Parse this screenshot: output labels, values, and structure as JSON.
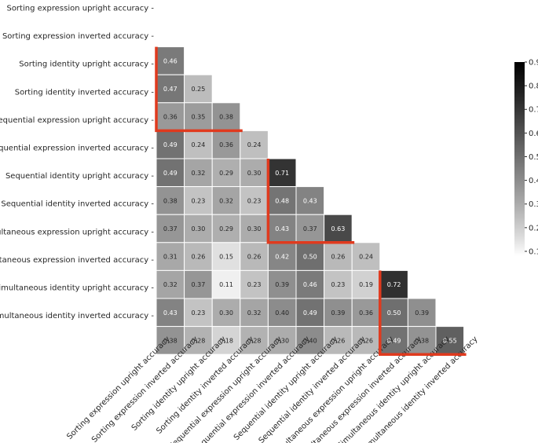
{
  "chart_data": {
    "type": "heatmap",
    "title": "",
    "xlabel": "",
    "ylabel": "",
    "labels": [
      "Sorting expression upright accuracy",
      "Sorting expression inverted accuracy",
      "Sorting identity upright accuracy",
      "Sorting identity inverted accuracy",
      "Sequential expression upright accuracy",
      "Sequential expression inverted accuracy",
      "Sequential identity upright accuracy",
      "Sequential identity inverted accuracy",
      "Simultaneous expression upright accuracy",
      "Simultaneous expression inverted accuracy",
      "Simultaneous identity upright accuracy",
      "Simultaneous identity inverted accuracy"
    ],
    "matrix": [
      [],
      [
        0.46
      ],
      [
        0.47,
        0.25
      ],
      [
        0.36,
        0.35,
        0.38
      ],
      [
        0.49,
        0.24,
        0.36,
        0.24
      ],
      [
        0.49,
        0.32,
        0.29,
        0.3,
        0.71
      ],
      [
        0.38,
        0.23,
        0.32,
        0.23,
        0.48,
        0.43
      ],
      [
        0.37,
        0.3,
        0.29,
        0.3,
        0.43,
        0.37,
        0.63
      ],
      [
        0.31,
        0.26,
        0.15,
        0.26,
        0.42,
        0.5,
        0.26,
        0.24
      ],
      [
        0.32,
        0.37,
        0.11,
        0.23,
        0.39,
        0.46,
        0.23,
        0.19,
        0.72
      ],
      [
        0.43,
        0.23,
        0.3,
        0.32,
        0.4,
        0.49,
        0.39,
        0.36,
        0.5,
        0.39
      ],
      [
        0.38,
        0.28,
        0.18,
        0.28,
        0.3,
        0.4,
        0.26,
        0.26,
        0.49,
        0.38,
        0.55
      ]
    ],
    "colorbar": {
      "range": [
        0.08,
        0.9
      ],
      "ticks": [
        "0.1",
        "0.2",
        "0.3",
        "0.4",
        "0.5",
        "0.6",
        "0.7",
        "0.8",
        "0.9"
      ],
      "colormap": "white-to-black (Greys)"
    },
    "highlight_color": "#e03a1e",
    "highlight_groups": [
      {
        "rows": [
          1,
          3
        ],
        "cols": [
          0,
          2
        ]
      },
      {
        "rows": [
          5,
          7
        ],
        "cols": [
          4,
          6
        ]
      },
      {
        "rows": [
          9,
          11
        ],
        "cols": [
          8,
          10
        ]
      }
    ],
    "grid": false,
    "legend": "colorbar right"
  }
}
